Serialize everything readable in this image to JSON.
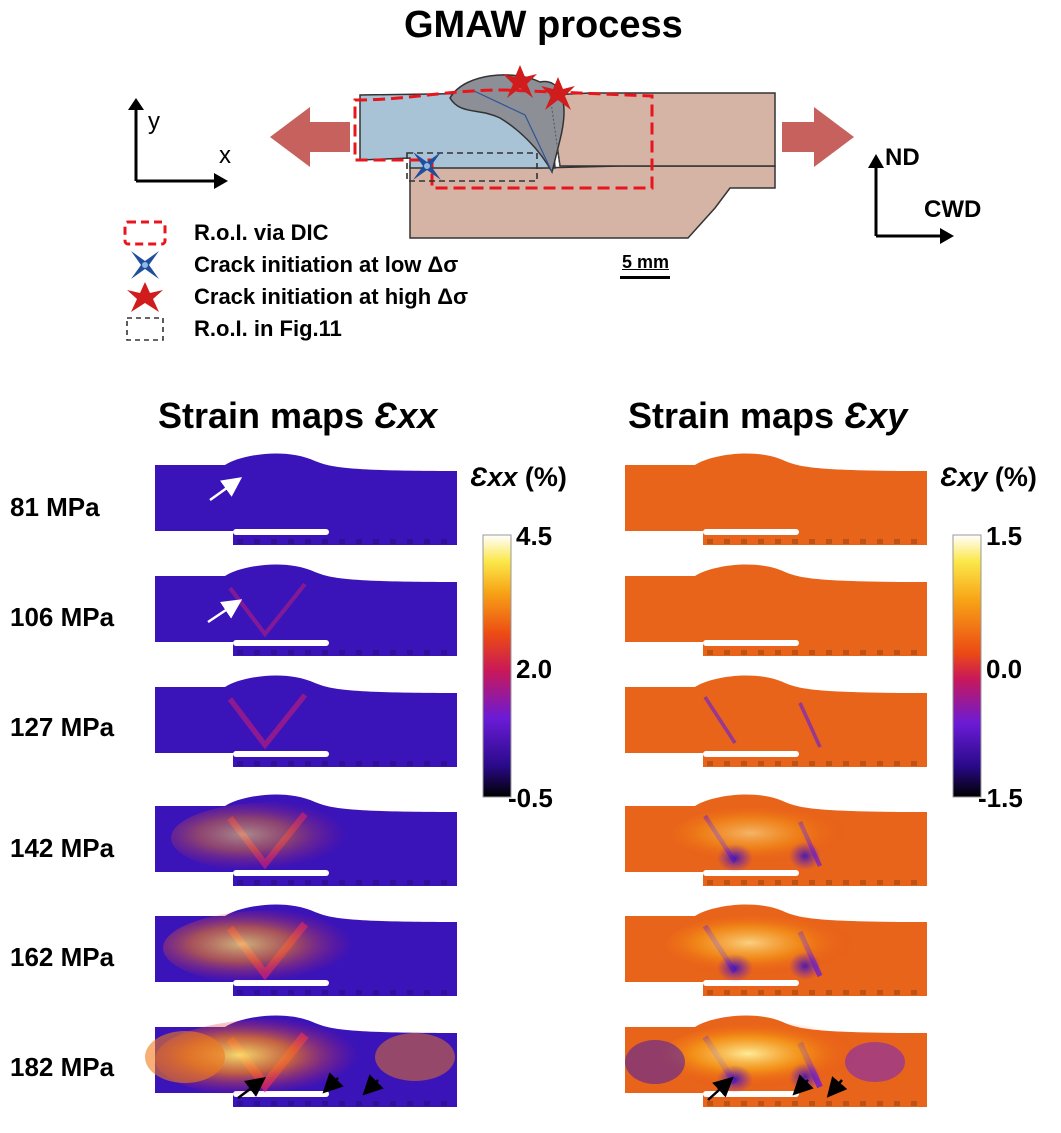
{
  "header": {
    "title": "GMAW process"
  },
  "axes": {
    "left_y": "y",
    "left_x": "x",
    "right_y": "ND",
    "right_x": "CWD"
  },
  "legend": {
    "items": [
      {
        "symbol": "red-dashed-box",
        "label": "R.o.I. via DIC"
      },
      {
        "symbol": "blue-star",
        "label": "Crack initiation at low Δσ"
      },
      {
        "symbol": "red-star",
        "label": "Crack initiation at high Δσ"
      },
      {
        "symbol": "black-dashed-box",
        "label": "R.o.I. in Fig.11"
      }
    ]
  },
  "scale_bar": {
    "label": "5 mm"
  },
  "panels": {
    "exx": {
      "title_prefix": "Strain maps ",
      "title_symbol": "Ɛxx",
      "colorbar_symbol": "Ɛxx",
      "colorbar_unit": " (%)",
      "ticks": [
        "4.5",
        "2.0",
        "-0.5"
      ]
    },
    "exy": {
      "title_prefix": "Strain maps ",
      "title_symbol": "Ɛxy",
      "colorbar_symbol": "Ɛxy",
      "colorbar_unit": " (%)",
      "ticks": [
        "1.5",
        "0.0",
        "-1.5"
      ]
    }
  },
  "stress_levels": [
    "81 MPa",
    "106 MPa",
    "127 MPa",
    "142 MPa",
    "162 MPa",
    "182 MPa"
  ],
  "colors": {
    "roi_red": "#e8151c",
    "arrow_red": "#c0504d",
    "exx_low": "#3a14b8",
    "exy_mid": "#e8641a",
    "star_blue": "#1f4e9c",
    "star_red": "#d01c1c"
  }
}
